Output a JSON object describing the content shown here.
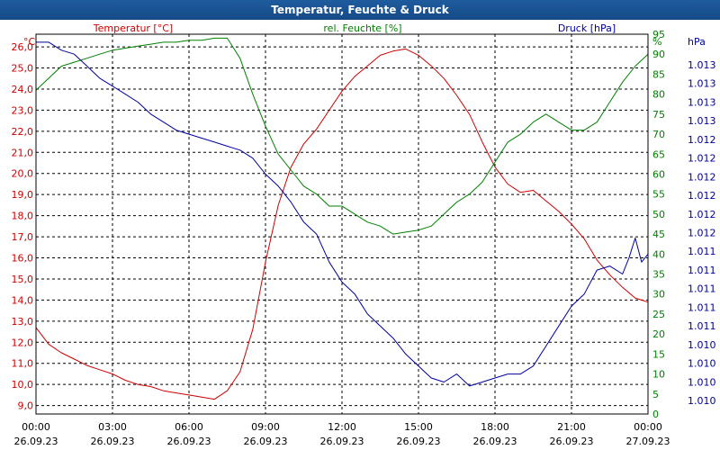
{
  "window": {
    "title": "Temperatur, Feuchte & Druck"
  },
  "chart_data": {
    "type": "line",
    "title": "Temperatur, Feuchte & Druck",
    "colors": {
      "temperature": "#cc0000",
      "humidity": "#008000",
      "pressure": "#00009e",
      "grid": "#000000",
      "background": "#ffffff",
      "title_bar": "#1b5494"
    },
    "series_labels": {
      "temperature": "Temperatur [°C]",
      "humidity": "rel. Feuchte [%]",
      "pressure": "Druck [hPa]"
    },
    "axes": {
      "left": {
        "unit": "°C",
        "range": [
          8.6,
          26.6
        ],
        "ticks": [
          "26,0",
          "25,0",
          "24,0",
          "23,0",
          "22,0",
          "21,0",
          "20,0",
          "19,0",
          "18,0",
          "17,0",
          "16,0",
          "15,0",
          "14,0",
          "13,0",
          "12,0",
          "11,0",
          "10,0",
          "9,0"
        ]
      },
      "right1": {
        "unit": "%",
        "range": [
          0,
          95
        ],
        "ticks": [
          "95",
          "90",
          "85",
          "80",
          "75",
          "70",
          "65",
          "60",
          "55",
          "50",
          "45",
          "40",
          "35",
          "30",
          "25",
          "20",
          "15",
          "10",
          "5",
          "0"
        ]
      },
      "right2": {
        "unit": "hPa",
        "ticks": [
          "1.013",
          "1.013",
          "1.013",
          "1.013",
          "1.012",
          "1.012",
          "1.012",
          "1.012",
          "1.012",
          "1.012",
          "1.011",
          "1.011",
          "1.011",
          "1.011",
          "1.011",
          "1.010",
          "1.010",
          "1.010",
          "1.010"
        ]
      },
      "x": {
        "ticks": [
          {
            "time": "00:00",
            "date": "26.09.23"
          },
          {
            "time": "03:00",
            "date": "26.09.23"
          },
          {
            "time": "06:00",
            "date": "26.09.23"
          },
          {
            "time": "09:00",
            "date": "26.09.23"
          },
          {
            "time": "12:00",
            "date": "26.09.23"
          },
          {
            "time": "15:00",
            "date": "26.09.23"
          },
          {
            "time": "18:00",
            "date": "26.09.23"
          },
          {
            "time": "21:00",
            "date": "26.09.23"
          },
          {
            "time": "00:00",
            "date": "27.09.23"
          }
        ]
      }
    },
    "series": [
      {
        "name": "Temperatur",
        "axis": "left",
        "x": [
          0,
          0.5,
          1,
          1.5,
          2,
          2.5,
          3,
          3.5,
          4,
          4.5,
          5,
          5.5,
          6,
          6.5,
          7,
          7.5,
          8,
          8.5,
          9,
          9.5,
          10,
          10.5,
          11,
          11.5,
          12,
          12.5,
          13,
          13.5,
          14,
          14.5,
          15,
          15.5,
          16,
          16.5,
          17,
          17.5,
          18,
          18.5,
          19,
          19.5,
          20,
          20.5,
          21,
          21.5,
          22,
          22.5,
          23,
          23.5,
          24
        ],
        "y": [
          12.7,
          11.9,
          11.5,
          11.2,
          10.9,
          10.7,
          10.5,
          10.2,
          10.0,
          9.9,
          9.7,
          9.6,
          9.5,
          9.4,
          9.3,
          9.7,
          10.6,
          12.6,
          15.8,
          18.5,
          20.3,
          21.4,
          22.1,
          23.0,
          23.9,
          24.6,
          25.1,
          25.6,
          25.8,
          25.9,
          25.6,
          25.1,
          24.5,
          23.7,
          22.8,
          21.5,
          20.3,
          19.5,
          19.1,
          19.2,
          18.7,
          18.2,
          17.6,
          16.9,
          15.9,
          15.2,
          14.6,
          14.1,
          13.9
        ]
      },
      {
        "name": "rel. Feuchte",
        "axis": "right1",
        "x": [
          0,
          0.5,
          1,
          1.5,
          2,
          2.5,
          3,
          3.5,
          4,
          4.5,
          5,
          5.5,
          6,
          6.5,
          7,
          7.5,
          8,
          8.5,
          9,
          9.5,
          10,
          10.5,
          11,
          11.5,
          12,
          12.5,
          13,
          13.5,
          14,
          14.5,
          15,
          15.5,
          16,
          16.5,
          17,
          17.5,
          18,
          18.5,
          19,
          19.5,
          20,
          20.5,
          21,
          21.5,
          22,
          22.5,
          23,
          23.5,
          24
        ],
        "y": [
          81,
          84,
          87,
          88,
          89,
          90,
          91,
          91.5,
          92,
          92.5,
          93,
          93,
          93.5,
          93.5,
          94,
          94,
          89,
          80,
          72,
          65,
          61,
          57,
          55,
          52,
          52,
          50,
          48,
          47,
          45,
          45.5,
          46,
          47,
          50,
          53,
          55,
          58,
          63,
          68,
          70,
          73,
          75,
          73,
          71,
          71,
          73,
          78,
          83,
          87,
          90
        ]
      },
      {
        "name": "Druck",
        "axis": "right2",
        "x": [
          0,
          0.5,
          1,
          1.5,
          2,
          2.5,
          3,
          3.5,
          4,
          4.5,
          5,
          5.5,
          6,
          6.5,
          7,
          7.5,
          8,
          8.5,
          9,
          9.5,
          10,
          10.5,
          11,
          11.5,
          12,
          12.5,
          13,
          13.5,
          14,
          14.5,
          15,
          15.5,
          16,
          16.5,
          17,
          17.5,
          18,
          18.5,
          19,
          19.5,
          20,
          20.5,
          21,
          21.5,
          22,
          22.5,
          23,
          23.25,
          23.5,
          23.75,
          24
        ],
        "y": [
          93,
          93,
          91,
          90,
          87,
          84,
          82,
          80,
          78,
          75,
          73,
          71,
          70,
          69,
          68,
          67,
          66,
          64,
          60,
          57,
          53,
          48,
          45,
          38,
          33,
          30,
          25,
          22,
          19,
          15,
          12,
          9,
          8,
          10,
          7,
          8,
          9,
          10,
          10,
          12,
          17,
          22,
          27,
          30,
          36,
          37,
          35,
          39,
          44,
          38,
          40
        ]
      }
    ]
  }
}
